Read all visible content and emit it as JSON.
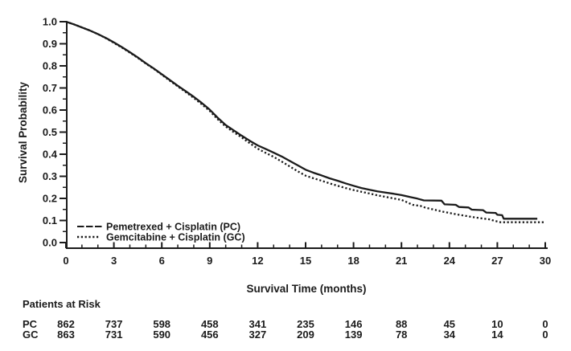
{
  "figure": {
    "background": "#ffffff",
    "ink_color": "#1b1b1b"
  },
  "chart_data": {
    "type": "line",
    "subtype": "kaplan-meier-step",
    "title": "",
    "xlabel": "Survival Time (months)",
    "ylabel": "Survival Probability",
    "xlim": [
      0,
      30
    ],
    "ylim": [
      0.0,
      1.0
    ],
    "x_major_ticks": [
      0,
      3,
      6,
      9,
      12,
      15,
      18,
      21,
      24,
      27,
      30
    ],
    "x_minor_tick_step": 1,
    "y_major_ticks": [
      0.0,
      0.1,
      0.2,
      0.3,
      0.4,
      0.5,
      0.6,
      0.7,
      0.8,
      0.9,
      1.0
    ],
    "y_minor_tick_step": 0.05,
    "grid": false,
    "legend_position": "inside-bottom-left",
    "series": [
      {
        "name": "Pemetrexed + Cisplatin (PC)",
        "abbrev": "PC",
        "line_style": "solid",
        "points": [
          [
            0,
            1.0
          ],
          [
            0.5,
            0.988
          ],
          [
            1,
            0.974
          ],
          [
            1.5,
            0.96
          ],
          [
            2,
            0.944
          ],
          [
            2.5,
            0.926
          ],
          [
            3,
            0.906
          ],
          [
            3.5,
            0.885
          ],
          [
            4,
            0.862
          ],
          [
            4.5,
            0.838
          ],
          [
            5,
            0.812
          ],
          [
            5.5,
            0.788
          ],
          [
            6,
            0.762
          ],
          [
            6.5,
            0.736
          ],
          [
            7,
            0.71
          ],
          [
            7.5,
            0.685
          ],
          [
            8,
            0.66
          ],
          [
            8.5,
            0.632
          ],
          [
            9,
            0.602
          ],
          [
            9.5,
            0.565
          ],
          [
            10,
            0.532
          ],
          [
            10.5,
            0.508
          ],
          [
            11,
            0.484
          ],
          [
            11.5,
            0.461
          ],
          [
            12,
            0.44
          ],
          [
            12.5,
            0.424
          ],
          [
            13,
            0.407
          ],
          [
            13.5,
            0.39
          ],
          [
            14,
            0.37
          ],
          [
            14.5,
            0.35
          ],
          [
            15,
            0.33
          ],
          [
            15.5,
            0.316
          ],
          [
            16,
            0.304
          ],
          [
            16.5,
            0.291
          ],
          [
            17,
            0.28
          ],
          [
            17.5,
            0.268
          ],
          [
            18,
            0.257
          ],
          [
            18.5,
            0.247
          ],
          [
            19,
            0.239
          ],
          [
            19.5,
            0.232
          ],
          [
            20,
            0.226
          ],
          [
            20.5,
            0.221
          ],
          [
            21,
            0.215
          ],
          [
            21.5,
            0.207
          ],
          [
            22,
            0.199
          ],
          [
            22.4,
            0.191
          ],
          [
            23.5,
            0.19
          ],
          [
            23.7,
            0.173
          ],
          [
            24.4,
            0.171
          ],
          [
            24.6,
            0.161
          ],
          [
            25.2,
            0.159
          ],
          [
            25.4,
            0.149
          ],
          [
            26.1,
            0.147
          ],
          [
            26.3,
            0.136
          ],
          [
            26.9,
            0.134
          ],
          [
            27.0,
            0.126
          ],
          [
            27.3,
            0.124
          ],
          [
            27.4,
            0.108
          ],
          [
            29.5,
            0.108
          ]
        ]
      },
      {
        "name": "Gemcitabine + Cisplatin (GC)",
        "abbrev": "GC",
        "line_style": "dotted",
        "points": [
          [
            0,
            1.0
          ],
          [
            0.5,
            0.988
          ],
          [
            1,
            0.974
          ],
          [
            1.5,
            0.96
          ],
          [
            2,
            0.944
          ],
          [
            2.5,
            0.925
          ],
          [
            3,
            0.904
          ],
          [
            3.5,
            0.883
          ],
          [
            4,
            0.86
          ],
          [
            4.5,
            0.836
          ],
          [
            5,
            0.81
          ],
          [
            5.5,
            0.786
          ],
          [
            6,
            0.76
          ],
          [
            6.5,
            0.733
          ],
          [
            7,
            0.707
          ],
          [
            7.5,
            0.681
          ],
          [
            8,
            0.655
          ],
          [
            8.5,
            0.626
          ],
          [
            9,
            0.596
          ],
          [
            9.5,
            0.558
          ],
          [
            10,
            0.525
          ],
          [
            10.5,
            0.5
          ],
          [
            11,
            0.476
          ],
          [
            11.5,
            0.45
          ],
          [
            12,
            0.425
          ],
          [
            12.5,
            0.406
          ],
          [
            13,
            0.388
          ],
          [
            13.5,
            0.367
          ],
          [
            14,
            0.345
          ],
          [
            14.5,
            0.323
          ],
          [
            15,
            0.303
          ],
          [
            15.5,
            0.291
          ],
          [
            16,
            0.28
          ],
          [
            16.5,
            0.268
          ],
          [
            17,
            0.257
          ],
          [
            17.5,
            0.247
          ],
          [
            18,
            0.238
          ],
          [
            18.5,
            0.23
          ],
          [
            19,
            0.222
          ],
          [
            19.5,
            0.214
          ],
          [
            20,
            0.207
          ],
          [
            20.5,
            0.2
          ],
          [
            21,
            0.193
          ],
          [
            21.3,
            0.184
          ],
          [
            21.7,
            0.171
          ],
          [
            22.2,
            0.166
          ],
          [
            22.5,
            0.158
          ],
          [
            23,
            0.15
          ],
          [
            23.5,
            0.141
          ],
          [
            24,
            0.134
          ],
          [
            24.5,
            0.127
          ],
          [
            25,
            0.121
          ],
          [
            25.5,
            0.115
          ],
          [
            26,
            0.11
          ],
          [
            26.5,
            0.105
          ],
          [
            26.8,
            0.099
          ],
          [
            27.2,
            0.092
          ],
          [
            30,
            0.092
          ]
        ]
      }
    ],
    "patients_at_risk": {
      "label": "Patients at Risk",
      "times": [
        0,
        3,
        6,
        9,
        12,
        15,
        18,
        21,
        24,
        27,
        30
      ],
      "rows": [
        {
          "label": "PC",
          "counts": [
            862,
            737,
            598,
            458,
            341,
            235,
            146,
            88,
            45,
            10,
            0
          ]
        },
        {
          "label": "GC",
          "counts": [
            863,
            731,
            590,
            456,
            327,
            209,
            139,
            78,
            34,
            14,
            0
          ]
        }
      ]
    }
  }
}
